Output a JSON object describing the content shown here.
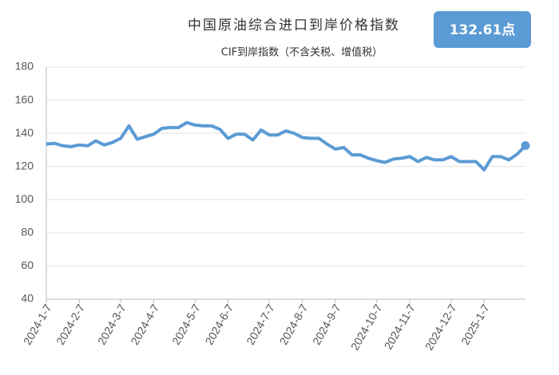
{
  "chart_data": {
    "type": "line",
    "title": "中国原油综合进口到岸价格指数",
    "subtitle": "CIF到岸指数（不含关税、增值税）",
    "badge": "132.61点",
    "categories": [
      "2024-1-7",
      null,
      null,
      null,
      "2024-2-7",
      null,
      null,
      null,
      null,
      "2024-3-7",
      null,
      null,
      null,
      "2024-4-7",
      null,
      null,
      null,
      null,
      "2024-5-7",
      null,
      null,
      null,
      "2024-6-7",
      null,
      null,
      null,
      null,
      "2024-7-7",
      null,
      null,
      null,
      "2024-8-7",
      null,
      null,
      null,
      "2024-9-7",
      null,
      null,
      null,
      null,
      "2024-10-7",
      null,
      null,
      null,
      "2024-11-7",
      null,
      null,
      null,
      null,
      "2024-12-7",
      null,
      null,
      null,
      "2025-1-7",
      null,
      null,
      null,
      null,
      null
    ],
    "series": [
      {
        "name": "CIF到岸指数",
        "color": "#5b9bd5",
        "values": [
          133.5,
          134,
          132.5,
          132,
          133,
          132.5,
          135.5,
          133,
          134.5,
          137,
          144.5,
          136.5,
          138,
          139.5,
          143,
          143.5,
          143.5,
          146.5,
          145,
          144.5,
          144.5,
          142.5,
          137,
          139.5,
          139.5,
          136,
          142,
          139,
          139,
          141.5,
          140,
          137.5,
          137,
          137,
          133.5,
          130.5,
          131.5,
          127,
          127,
          125,
          123.5,
          122.5,
          124.5,
          125,
          126,
          123,
          125.5,
          124,
          124,
          126,
          123,
          123,
          123,
          118,
          126,
          126,
          124,
          127.5,
          132.6
        ]
      }
    ],
    "ylim": [
      40,
      180
    ],
    "yticks": [
      40,
      60,
      80,
      100,
      120,
      140,
      160,
      180
    ],
    "grid": true
  }
}
